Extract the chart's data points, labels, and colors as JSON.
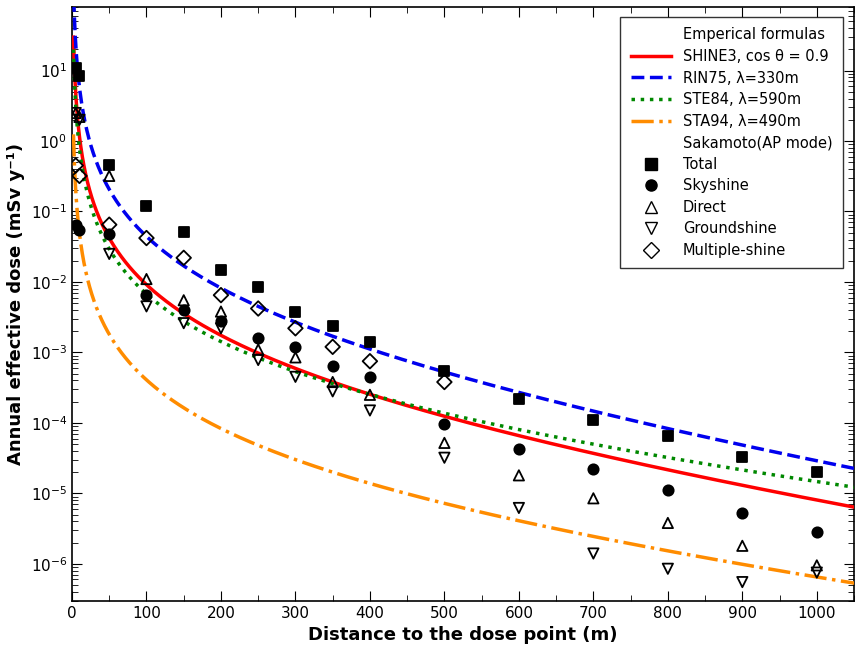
{
  "xlabel": "Distance to the dose point (m)",
  "ylabel": "Annual effective dose (mSv y⁻¹)",
  "xlim": [
    0,
    1050
  ],
  "ylim": [
    3e-07,
    80
  ],
  "line_configs": {
    "SHINE3": {
      "A": 120.0,
      "lam": 370,
      "color": "#ff0000",
      "ls": "-",
      "lw": 2.5,
      "label": "SHINE3, cos θ = 0.9"
    },
    "RIN75": {
      "A": 600.0,
      "lam": 330,
      "color": "#0000ee",
      "ls": "--",
      "lw": 2.5,
      "label": "RIN75, λ=330m"
    },
    "STE84": {
      "A": 80.0,
      "lam": 590,
      "color": "#008800",
      "ls": ":",
      "lw": 2.5,
      "label": "STE84, λ=590m"
    },
    "STA94": {
      "A": 5.0,
      "lam": 490,
      "color": "#ff8c00",
      "ls": "-.",
      "lw": 2.5,
      "label": "STA94, λ=490m"
    }
  },
  "scatter": {
    "Total": {
      "x": [
        5,
        10,
        50,
        100,
        150,
        200,
        250,
        300,
        350,
        400,
        500,
        600,
        700,
        800,
        900,
        1000
      ],
      "y": [
        11.0,
        8.5,
        0.45,
        0.12,
        0.052,
        0.015,
        0.0085,
        0.0038,
        0.0024,
        0.0014,
        0.00055,
        0.00022,
        0.00011,
        6.5e-05,
        3.3e-05,
        2e-05
      ],
      "marker": "s",
      "ec": "black",
      "fc": "black",
      "ms": 55
    },
    "Skyshine": {
      "x": [
        5,
        10,
        50,
        100,
        150,
        200,
        250,
        300,
        350,
        400,
        500,
        600,
        700,
        800,
        900,
        1000
      ],
      "y": [
        0.065,
        0.055,
        0.048,
        0.0065,
        0.004,
        0.0028,
        0.0016,
        0.0012,
        0.00065,
        0.00045,
        9.5e-05,
        4.2e-05,
        2.2e-05,
        1.1e-05,
        5.2e-06,
        2.8e-06
      ],
      "marker": "o",
      "ec": "black",
      "fc": "black",
      "ms": 55
    },
    "Direct": {
      "x": [
        5,
        10,
        50,
        100,
        150,
        200,
        250,
        300,
        350,
        400,
        500,
        600,
        700,
        800,
        900,
        1000
      ],
      "y": [
        2.5,
        2.2,
        0.32,
        0.011,
        0.0055,
        0.0038,
        0.0011,
        0.00085,
        0.00038,
        0.00025,
        5.2e-05,
        1.8e-05,
        8.5e-06,
        3.8e-06,
        1.8e-06,
        9.5e-07
      ],
      "marker": "^",
      "ec": "black",
      "fc": "none",
      "ms": 55
    },
    "Groundshine": {
      "x": [
        5,
        10,
        50,
        100,
        150,
        200,
        250,
        300,
        350,
        400,
        500,
        600,
        700,
        800,
        900,
        1000
      ],
      "y": [
        2.5,
        2.0,
        0.025,
        0.0045,
        0.0026,
        0.0022,
        0.00078,
        0.00045,
        0.00028,
        0.00015,
        3.2e-05,
        6.2e-06,
        1.4e-06,
        8.5e-07,
        5.5e-07,
        7.5e-07
      ],
      "marker": "v",
      "ec": "black",
      "fc": "none",
      "ms": 55
    },
    "Multiple-shine": {
      "x": [
        5,
        10,
        50,
        100,
        150,
        200,
        250,
        300,
        350,
        400,
        500
      ],
      "y": [
        0.45,
        0.32,
        0.065,
        0.042,
        0.022,
        0.0065,
        0.0042,
        0.0022,
        0.0012,
        0.00075,
        0.00038
      ],
      "marker": "D",
      "ec": "black",
      "fc": "none",
      "ms": 55
    }
  },
  "legend_order": [
    "SHINE3",
    "RIN75",
    "STE84",
    "STA94"
  ],
  "scatter_order": [
    "Total",
    "Skyshine",
    "Direct",
    "Groundshine",
    "Multiple-shine"
  ],
  "background_color": "#ffffff"
}
